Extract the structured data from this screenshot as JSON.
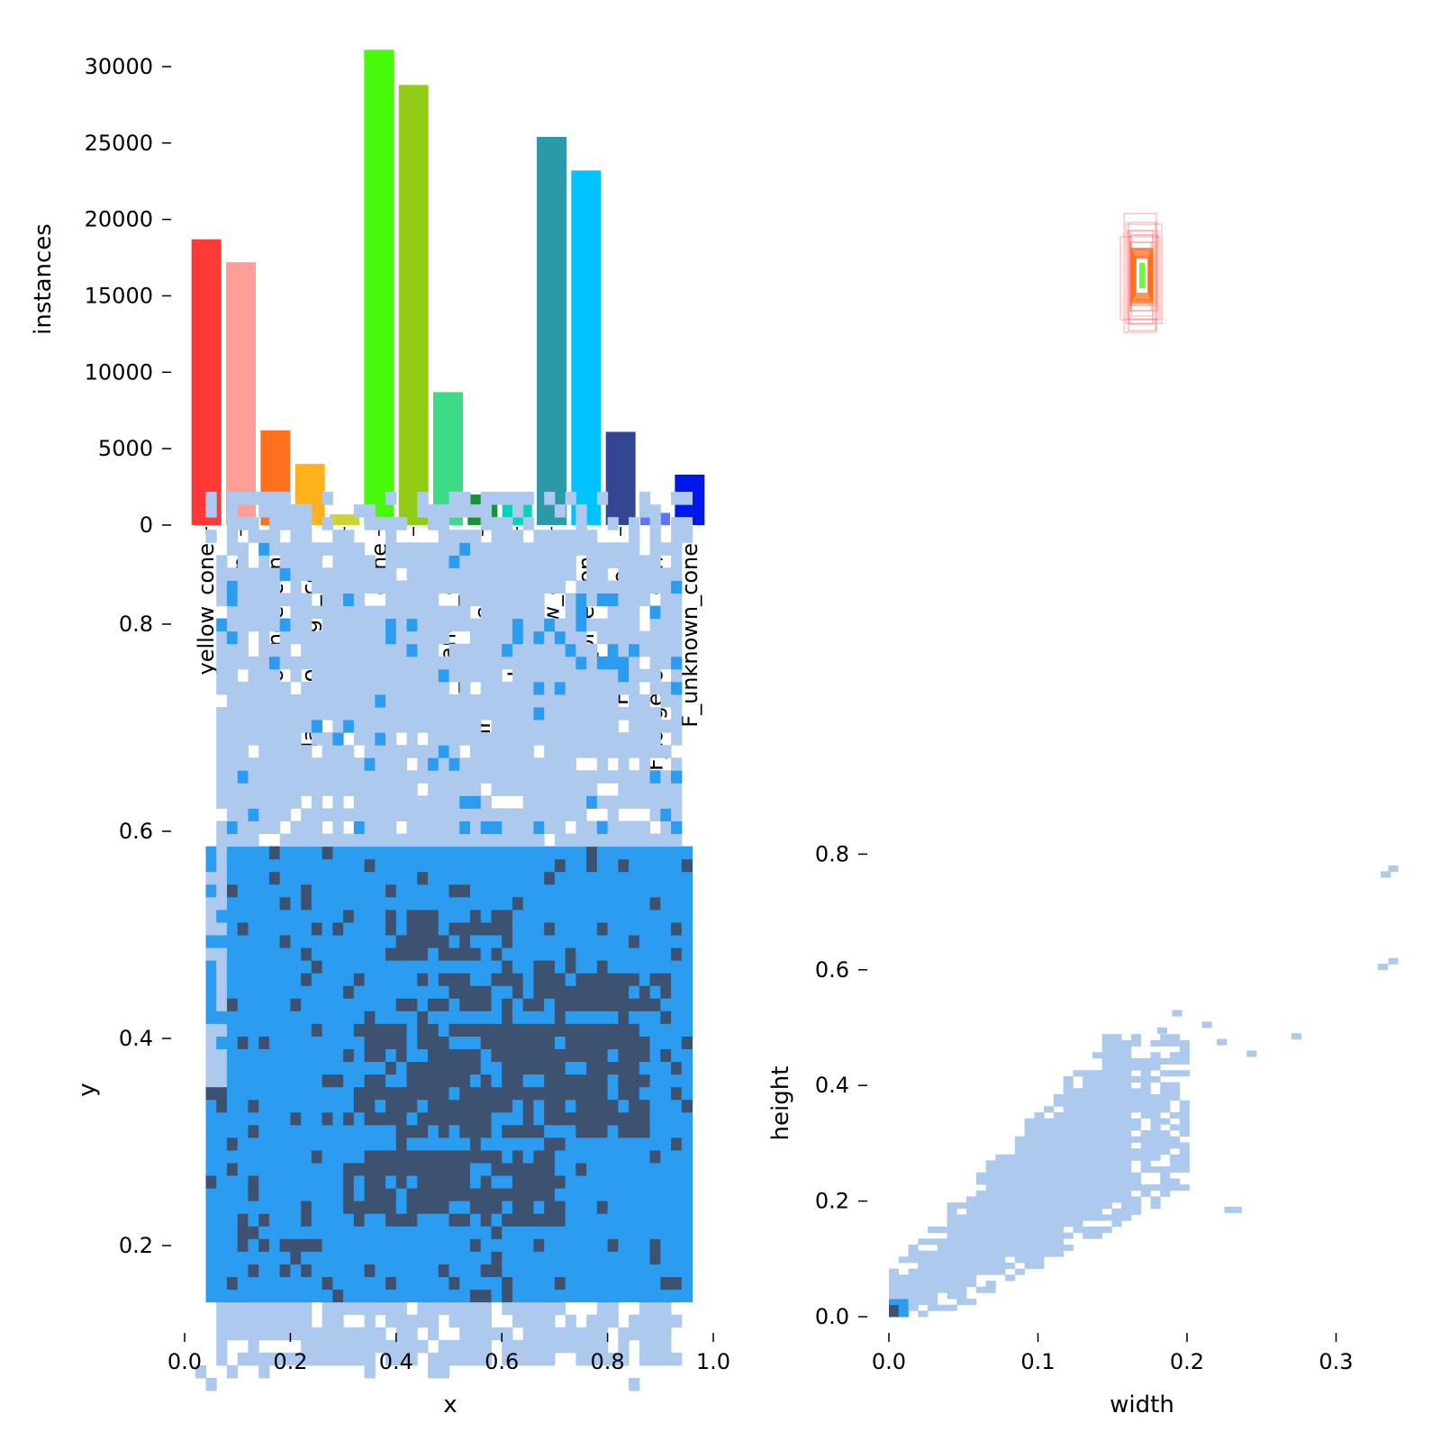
{
  "chart_data": [
    {
      "panel": "class-counts",
      "type": "bar",
      "ylabel": "instances",
      "xlabel": "",
      "ylim": [
        0,
        32000
      ],
      "yticks": [
        "0",
        "5000",
        "10000",
        "15000",
        "20000",
        "25000",
        "30000"
      ],
      "categories": [
        "yellow_cone",
        "blue_cone",
        "orange_cone",
        "large_orange_cone",
        "unknown_cone",
        "M_yellow_cone",
        "M_blue_cone",
        "M_orange_cone",
        "M_large_orange_cone",
        "M_unknown_cone",
        "F_yellow_cone",
        "F_blue_cone",
        "F_orange_cone",
        "F_large_orange_cone",
        "F_unknown_cone"
      ],
      "values": [
        18700,
        17200,
        6200,
        4000,
        700,
        31100,
        28800,
        8700,
        2000,
        2050,
        25400,
        23200,
        6100,
        800,
        3300
      ],
      "colors": [
        "#ff3838",
        "#ff9d97",
        "#ff701f",
        "#ffb21d",
        "#cfd231",
        "#48f90a",
        "#92cc17",
        "#3ddb86",
        "#1a9334",
        "#00d4bb",
        "#2c99a8",
        "#00c2ff",
        "#344593",
        "#6473ff",
        "#0018ec"
      ]
    },
    {
      "panel": "box-shapes",
      "type": "other",
      "description_colors": [
        "#ff3838",
        "#ff701f",
        "#48f90a"
      ]
    },
    {
      "panel": "xy-density",
      "type": "heatmap",
      "xlabel": "x",
      "ylabel": "y",
      "xlim": [
        0,
        1
      ],
      "ylim": [
        0.03,
        0.95
      ],
      "xticks": [
        "0.0",
        "0.2",
        "0.4",
        "0.6",
        "0.8",
        "1.0"
      ],
      "yticks": [
        "0.2",
        "0.4",
        "0.6",
        "0.8"
      ],
      "density_bands": [
        {
          "y": [
            0.15,
            0.35
          ],
          "level": "high"
        },
        {
          "y": [
            0.36,
            0.46
          ],
          "level": "high"
        },
        {
          "y": [
            0.46,
            0.58
          ],
          "level": "high"
        },
        {
          "y": [
            0.6,
            0.9
          ],
          "level": "low"
        }
      ],
      "colors": {
        "low": "#adc9ee",
        "mid": "#2b9cf0",
        "high": "#3d5271"
      }
    },
    {
      "panel": "wh-density",
      "type": "heatmap",
      "xlabel": "width",
      "ylabel": "height",
      "xlim": [
        0,
        0.34
      ],
      "ylim": [
        0,
        0.8
      ],
      "xticks": [
        "0.0",
        "0.1",
        "0.2",
        "0.3"
      ],
      "yticks": [
        "0.0",
        "0.2",
        "0.4",
        "0.6",
        "0.8"
      ],
      "colors": {
        "low": "#adc9ee",
        "mid": "#2b9cf0",
        "high": "#3d5271"
      }
    }
  ]
}
